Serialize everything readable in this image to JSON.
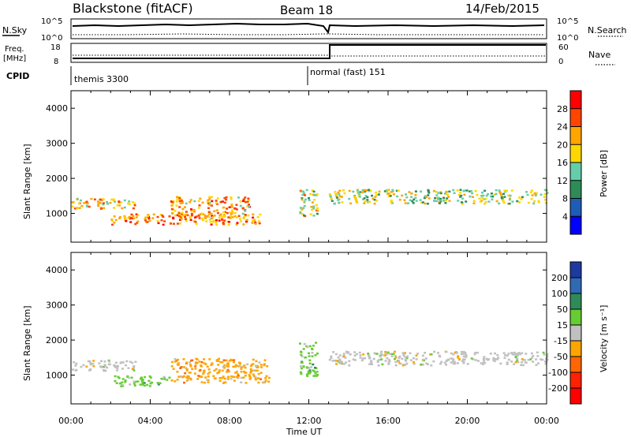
{
  "header": {
    "station": "Blackstone (fitACF)",
    "beam": "Beam 18",
    "date": "14/Feb/2015"
  },
  "panels": {
    "nsky": {
      "label": "N.Sky",
      "right_label": "N.Search",
      "left_ticks": [
        "10^5",
        "10^0"
      ],
      "right_ticks": [
        "10^5",
        "10^0"
      ]
    },
    "freq": {
      "label_line1": "Freq.",
      "label_line2": "[MHz]",
      "right_label": "Nave",
      "left_ticks": [
        "18",
        "8"
      ],
      "right_ticks": [
        "60",
        "0"
      ]
    },
    "cpid": {
      "label": "CPID",
      "segments": [
        {
          "start_hour": 0,
          "text": "themis 3300"
        },
        {
          "start_hour": 12,
          "text": "normal (fast) 151"
        }
      ]
    }
  },
  "chart_data": [
    {
      "type": "heatmap",
      "title": "Power",
      "xlabel": "",
      "ylabel": "Slant Range [km]",
      "xlim": [
        0,
        24
      ],
      "ylim": [
        180,
        4500
      ],
      "yticks": [
        "1000",
        "2000",
        "3000",
        "4000"
      ],
      "colorbar": {
        "label": "Power [dB]",
        "ticks": [
          "4",
          "8",
          "12",
          "16",
          "20",
          "24",
          "28"
        ],
        "colors": [
          "#0000ff",
          "#1f5db5",
          "#2e8b57",
          "#66cdaa",
          "#ffd700",
          "#ffa500",
          "#ff4500",
          "#ff0000"
        ]
      },
      "features": [
        {
          "hours": [
            0,
            3.2
          ],
          "range_km": [
            1150,
            1450
          ],
          "level_db": 20
        },
        {
          "hours": [
            2,
            9.5
          ],
          "range_km": [
            700,
            1000
          ],
          "level_db": 24
        },
        {
          "hours": [
            5,
            9
          ],
          "range_km": [
            900,
            1500
          ],
          "level_db": 22
        },
        {
          "hours": [
            11.5,
            12.4
          ],
          "range_km": [
            900,
            1700
          ],
          "level_db": 18
        },
        {
          "hours": [
            13,
            24
          ],
          "range_km": [
            1300,
            1700
          ],
          "level_db": 16
        }
      ]
    },
    {
      "type": "heatmap",
      "title": "Velocity",
      "xlabel": "Time UT",
      "ylabel": "Slant Range [km]",
      "xlim": [
        0,
        24
      ],
      "ylim": [
        180,
        4500
      ],
      "xticks": [
        "00:00",
        "04:00",
        "08:00",
        "12:00",
        "16:00",
        "20:00",
        "00:00"
      ],
      "yticks": [
        "1000",
        "2000",
        "3000",
        "4000"
      ],
      "colorbar": {
        "label": "Velocity [m s⁻¹]",
        "ticks": [
          "200",
          "100",
          "50",
          "15",
          "-15",
          "-50",
          "-100",
          "-200"
        ],
        "colors": [
          "#1e3aa0",
          "#2f6ab5",
          "#2e8b57",
          "#66cc33",
          "#c0c0c0",
          "#ffa500",
          "#ff6600",
          "#ff2200",
          "#ff0000"
        ]
      },
      "features": [
        {
          "hours": [
            0,
            3.2
          ],
          "range_km": [
            1150,
            1450
          ],
          "velocity": 0
        },
        {
          "hours": [
            2,
            5
          ],
          "range_km": [
            700,
            1000
          ],
          "velocity": 30
        },
        {
          "hours": [
            5,
            10
          ],
          "range_km": [
            800,
            1500
          ],
          "velocity": -40
        },
        {
          "hours": [
            11.5,
            12.4
          ],
          "range_km": [
            1000,
            2000
          ],
          "velocity": 30
        },
        {
          "hours": [
            13,
            24
          ],
          "range_km": [
            1300,
            1700
          ],
          "velocity": 0
        }
      ]
    }
  ]
}
